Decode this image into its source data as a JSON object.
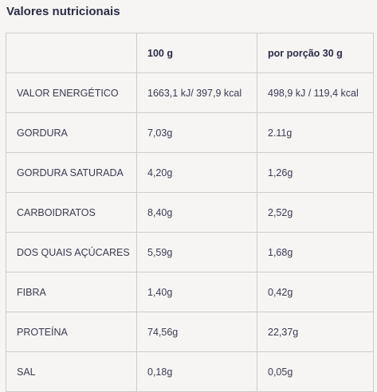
{
  "title": "Valores nutricionais",
  "table": {
    "headers": [
      "",
      "100 g",
      "por porção 30 g"
    ],
    "rows": [
      [
        "VALOR ENERGÉTICO",
        "1663,1 kJ/ 397,9 kcal",
        "498,9 kJ / 119,4 kcal"
      ],
      [
        "GORDURA",
        "7,03g",
        "2.11g"
      ],
      [
        "GORDURA SATURADA",
        "4,20g",
        "1,26g"
      ],
      [
        "CARBOIDRATOS",
        "8,40g",
        "2,52g"
      ],
      [
        "DOS QUAIS AÇÚCARES",
        "5,59g",
        "1,68g"
      ],
      [
        "FIBRA",
        "1,40g",
        "0,42g"
      ],
      [
        "PROTEÍNA",
        "74,56g",
        "22,37g"
      ],
      [
        "SAL",
        "0,18g",
        "0,05g"
      ]
    ]
  },
  "colors": {
    "background": "#f6f5f4",
    "border": "#cdcccc",
    "text": "#2e2e45"
  }
}
